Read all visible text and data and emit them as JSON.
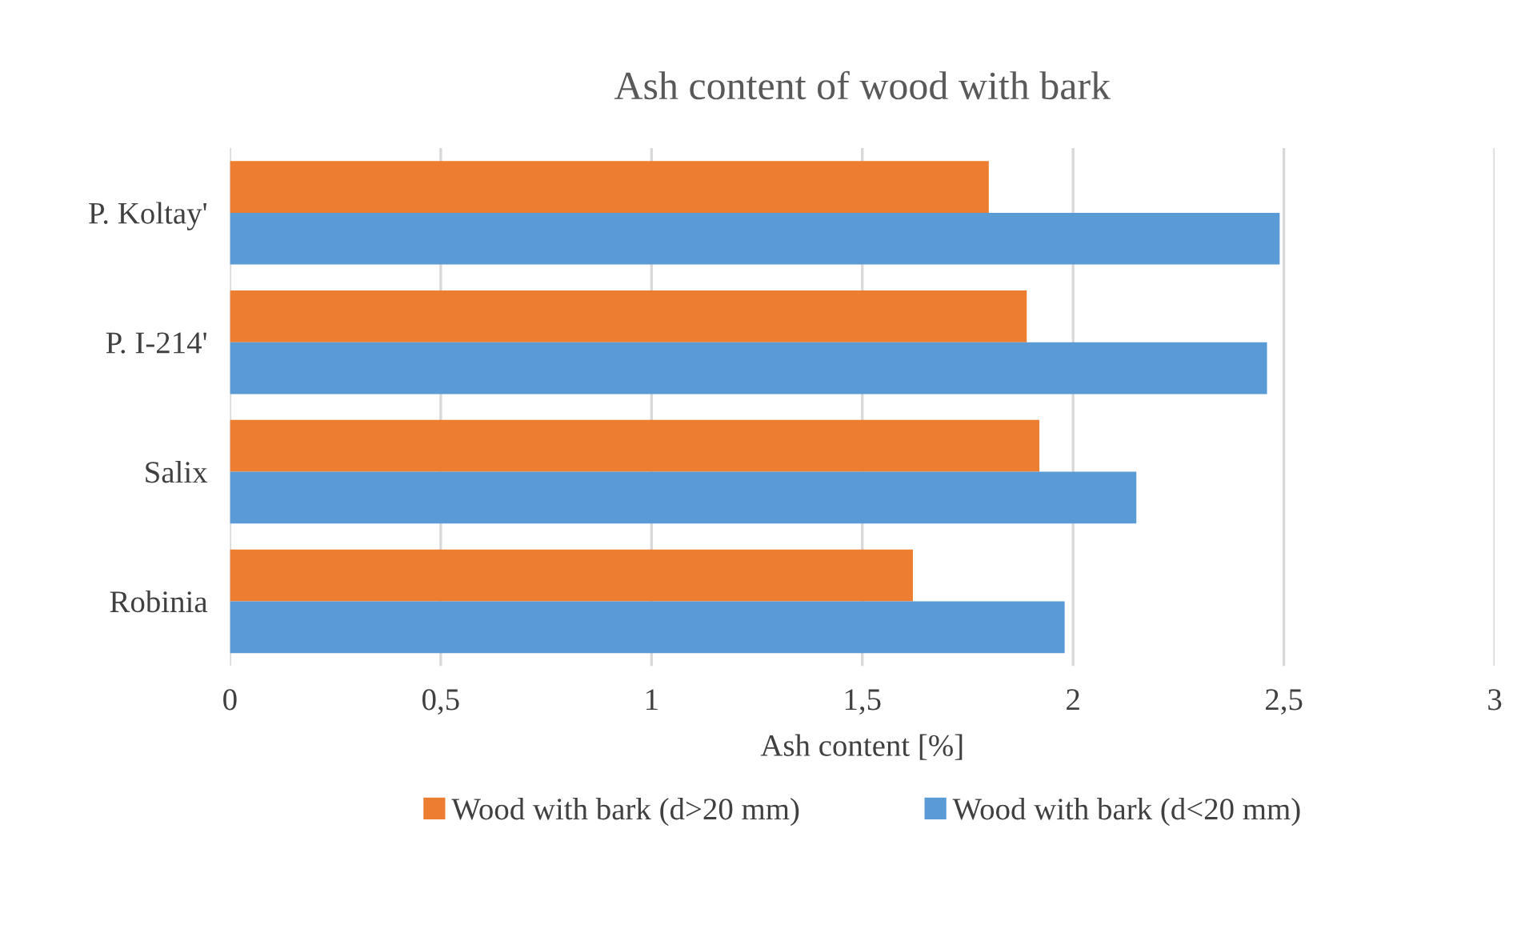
{
  "chart_data": {
    "type": "bar",
    "orientation": "horizontal",
    "title": "Ash content of wood with bark",
    "xlabel": "Ash content [%]",
    "categories": [
      "P. Koltay'",
      "P. I-214'",
      "Salix",
      "Robinia"
    ],
    "series": [
      {
        "name": "Wood with bark (d>20 mm)",
        "color": "#ed7d31",
        "values": [
          1.8,
          1.89,
          1.92,
          1.62
        ]
      },
      {
        "name": "Wood with bark (d<20 mm)",
        "color": "#5b9bd5",
        "values": [
          2.49,
          2.46,
          2.15,
          1.98
        ]
      }
    ],
    "xlim": [
      0,
      3
    ],
    "xticks": [
      0,
      {
        "value": 0.5,
        "label": "0,5"
      },
      1,
      {
        "value": 1.5,
        "label": "1,5"
      },
      2,
      {
        "value": 2.5,
        "label": "2,5"
      },
      3
    ],
    "grid": "x",
    "legend": "bottom"
  }
}
